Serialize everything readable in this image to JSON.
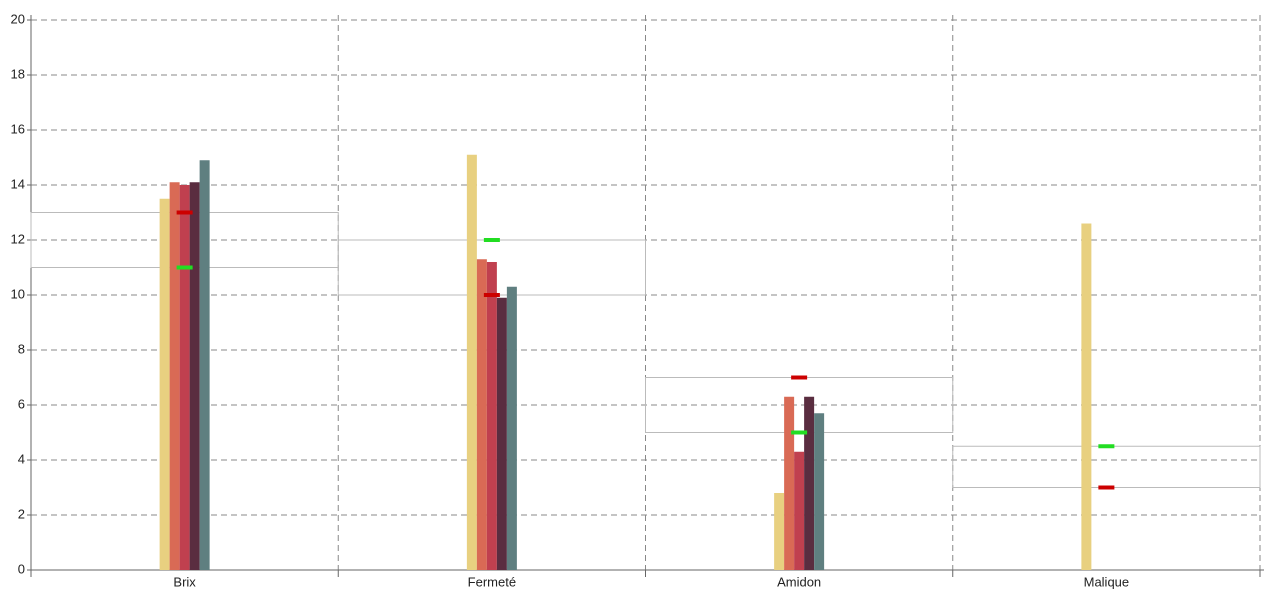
{
  "chart_data": {
    "type": "bar",
    "categories": [
      "Brix",
      "Fermeté",
      "Amidon",
      "Malique"
    ],
    "series": [
      {
        "color": "#e8d080",
        "values": [
          13.5,
          15.1,
          2.8,
          12.6
        ]
      },
      {
        "color": "#d96a55",
        "values": [
          14.1,
          11.3,
          6.3,
          0
        ]
      },
      {
        "color": "#c0404f",
        "values": [
          14.0,
          11.2,
          4.3,
          0
        ]
      },
      {
        "color": "#5a2d40",
        "values": [
          14.1,
          9.9,
          6.3,
          0
        ]
      },
      {
        "color": "#5f7f80",
        "values": [
          14.9,
          10.3,
          5.7,
          0
        ]
      }
    ],
    "markers": [
      {
        "color": "#22dd22",
        "values": [
          11,
          12,
          5,
          4.5
        ]
      },
      {
        "color": "#cc0000",
        "values": [
          13,
          10,
          7,
          3
        ]
      }
    ],
    "ylim": [
      0,
      20
    ],
    "yticks": [
      0,
      2,
      4,
      6,
      8,
      10,
      12,
      14,
      16,
      18,
      20
    ],
    "grid": true
  }
}
